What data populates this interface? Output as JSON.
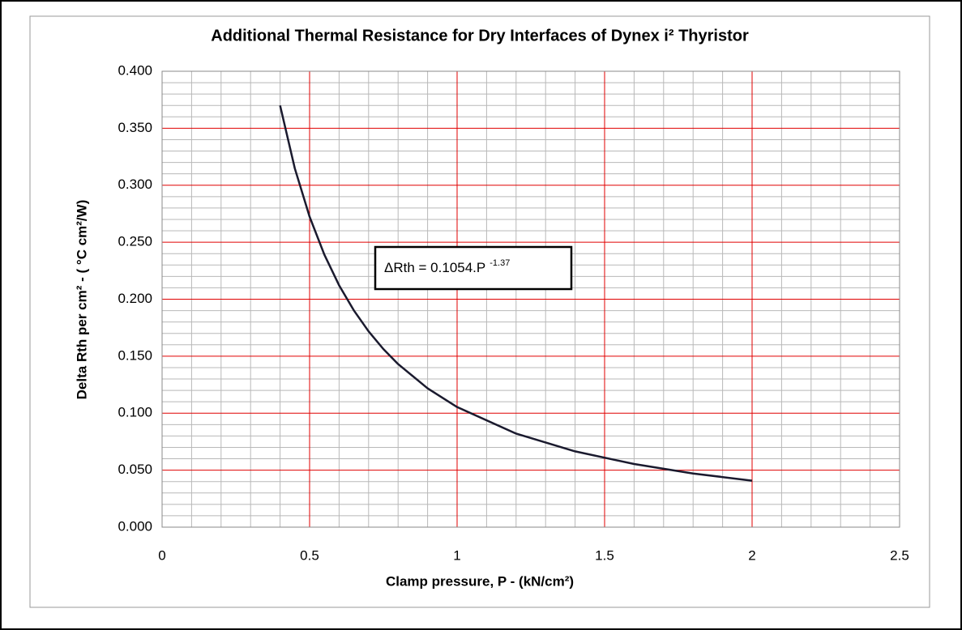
{
  "chart_data": {
    "type": "line",
    "title": "Additional Thermal Resistance for Dry Interfaces of Dynex i² Thyristor",
    "x_label": "Clamp pressure, P -  (kN/cm²)",
    "y_label": "Delta Rth per cm² - ( °C cm²/W)",
    "annotation": {
      "text": "ΔRth = 0.1054.P",
      "superscript": "-1.37"
    },
    "x": [
      0.4,
      0.45,
      0.5,
      0.55,
      0.6,
      0.65,
      0.7,
      0.75,
      0.8,
      0.9,
      1.0,
      1.2,
      1.4,
      1.6,
      1.8,
      2.0
    ],
    "series": [
      {
        "color": "#1a1a2e",
        "values": [
          0.37,
          0.3147,
          0.2724,
          0.2391,
          0.2122,
          0.1902,
          0.1718,
          0.1563,
          0.1431,
          0.1218,
          0.1054,
          0.0821,
          0.0665,
          0.0554,
          0.0471,
          0.0408
        ]
      }
    ],
    "xlim": [
      0,
      2.5
    ],
    "ylim": [
      0,
      0.4
    ],
    "xticks": [
      0,
      0.5,
      1,
      1.5,
      2,
      2.5
    ],
    "yticks": [
      {
        "value": 0,
        "label": "0.000"
      },
      {
        "value": 0.05,
        "label": "0.050"
      },
      {
        "value": 0.1,
        "label": "0.100"
      },
      {
        "value": 0.15,
        "label": "0.150"
      },
      {
        "value": 0.2,
        "label": "0.200"
      },
      {
        "value": 0.25,
        "label": "0.250"
      },
      {
        "value": 0.3,
        "label": "0.300"
      },
      {
        "value": 0.35,
        "label": "0.350"
      },
      {
        "value": 0.4,
        "label": "0.400"
      }
    ],
    "xminorticks": [
      0.1,
      0.2,
      0.3,
      0.4,
      0.6,
      0.7,
      0.8,
      0.9,
      1.1,
      1.2,
      1.3,
      1.4,
      1.6,
      1.7,
      1.8,
      1.9,
      2.1,
      2.2,
      2.3,
      2.4
    ],
    "yminorticks": [
      0.01,
      0.02,
      0.03,
      0.04,
      0.06,
      0.07,
      0.08,
      0.09,
      0.11,
      0.12,
      0.13,
      0.14,
      0.16,
      0.17,
      0.18,
      0.19,
      0.21,
      0.22,
      0.23,
      0.24,
      0.26,
      0.27,
      0.28,
      0.29,
      0.31,
      0.32,
      0.33,
      0.34,
      0.36,
      0.37,
      0.38,
      0.39
    ],
    "grid": true,
    "grid_color": "#e00000",
    "minor_grid_color": "#b8b8b8"
  }
}
